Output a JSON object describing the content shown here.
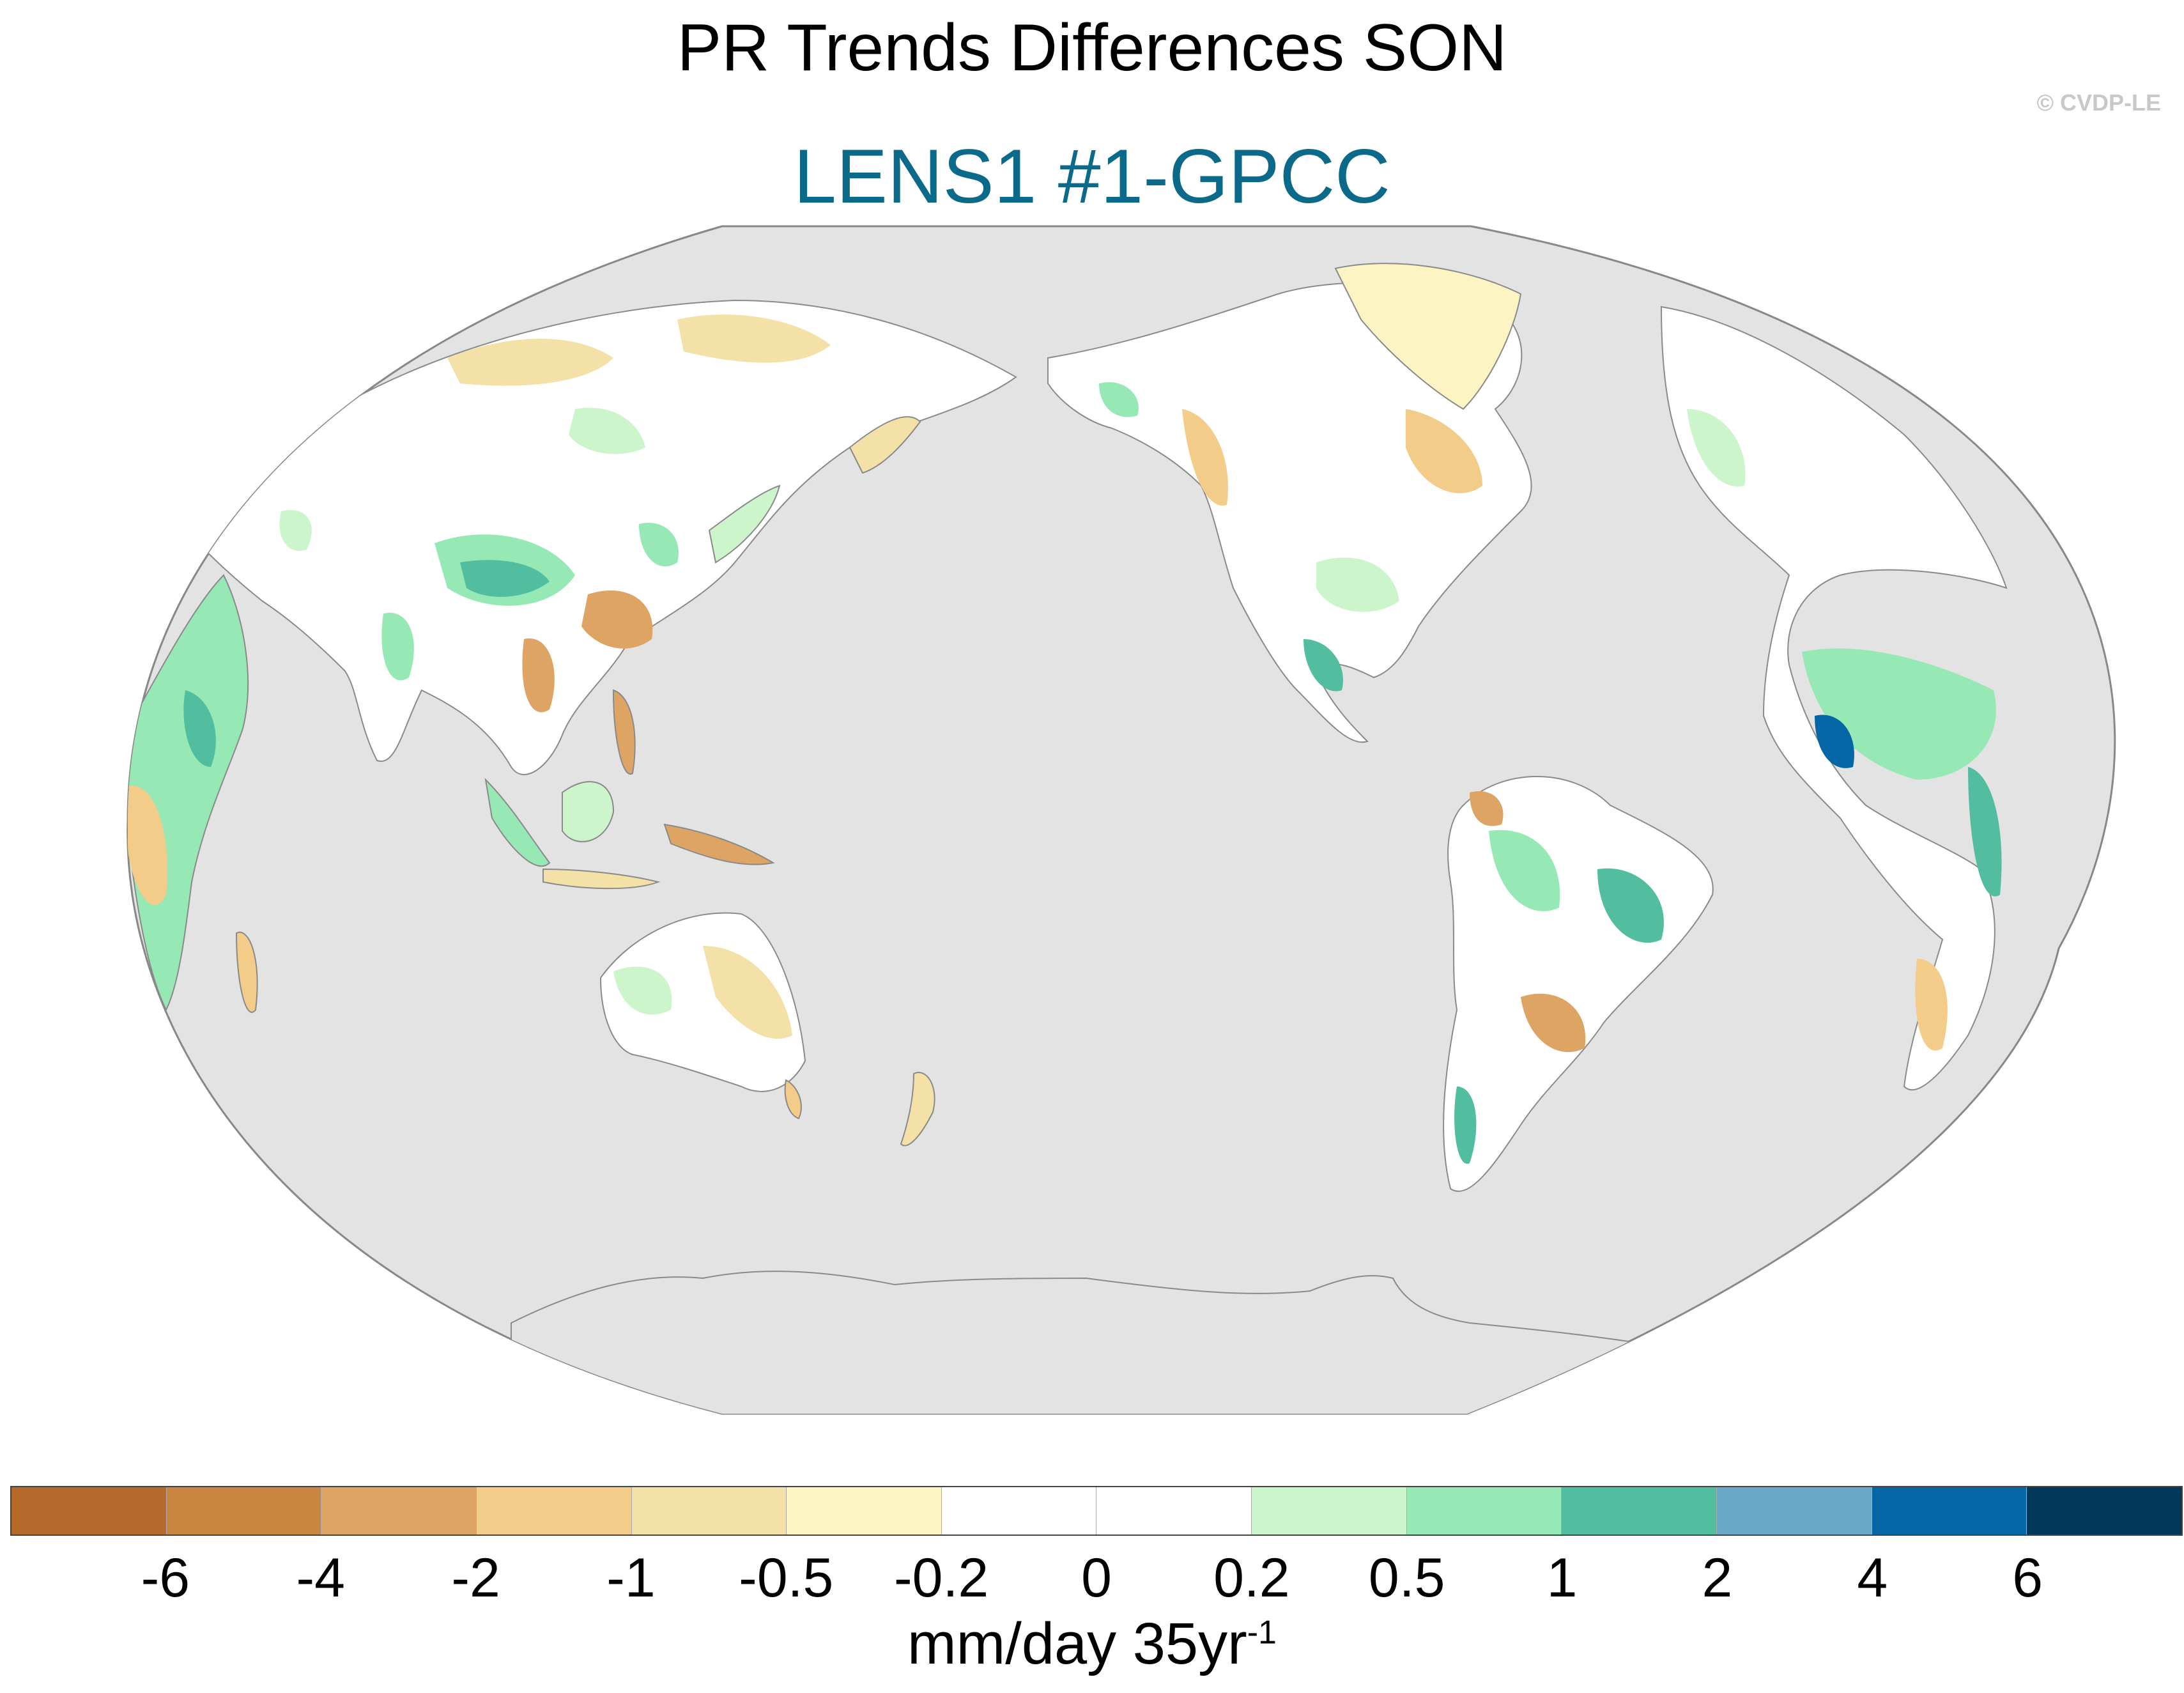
{
  "title": "PR Trends Differences SON",
  "subtitle": "LENS1 #1-GPCC",
  "credit": "© CVDP-LE",
  "colors": {
    "subtitle": "#0b6a8a",
    "ocean": "#e3e3e3",
    "coast": "#8a8a8a"
  },
  "colorbar": {
    "colors": [
      "#b56a2b",
      "#c98540",
      "#dda464",
      "#f2cc88",
      "#f3e1a8",
      "#fdf4c3",
      "#ffffff",
      "#ffffff",
      "#cdf5cc",
      "#96e8b4",
      "#52bd9f",
      "#6ba8c8",
      "#0566a6",
      "#023859"
    ],
    "labels": [
      "-6",
      "-4",
      "-2",
      "-1",
      "-0.5",
      "-0.2",
      "0",
      "0.2",
      "0.5",
      "1",
      "2",
      "4",
      "6"
    ],
    "units_base": "mm/day 35yr",
    "units_sup": "-1"
  }
}
